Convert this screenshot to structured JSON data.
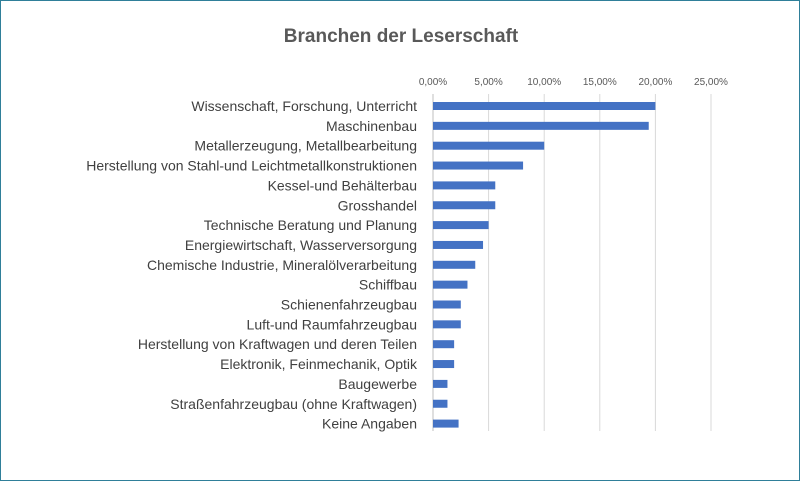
{
  "chart_data": {
    "type": "bar",
    "orientation": "horizontal",
    "title": "Branchen der Leserschaft",
    "xlabel": "",
    "ylabel": "",
    "xlim": [
      0,
      25
    ],
    "ticks": [
      0,
      5,
      10,
      15,
      20,
      25
    ],
    "tick_labels": [
      "0,00%",
      "5,00%",
      "10,00%",
      "15,00%",
      "20,00%",
      "25,00%"
    ],
    "grid": true,
    "axis_position": "top",
    "bar_color": "#4472c4",
    "categories": [
      "Wissenschaft, Forschung, Unterricht",
      "Maschinenbau",
      "Metallerzeugung, Metallbearbeitung",
      "Herstellung von Stahl-und Leichtmetallkonstruktionen",
      "Kessel-und Behälterbau",
      "Grosshandel",
      "Technische Beratung und Planung",
      "Energiewirtschaft, Wasserversorgung",
      "Chemische Industrie, Mineralölverarbeitung",
      "Schiffbau",
      "Schienenfahrzeugbau",
      "Luft-und Raumfahrzeugbau",
      "Herstellung von Kraftwagen und deren Teilen",
      "Elektronik, Feinmechanik, Optik",
      "Baugewerbe",
      "Straßenfahrzeugbau (ohne Kraftwagen)",
      "Keine Angaben"
    ],
    "values": [
      20.0,
      19.4,
      10.0,
      8.1,
      5.6,
      5.6,
      5.0,
      4.5,
      3.8,
      3.1,
      2.5,
      2.5,
      1.9,
      1.9,
      1.3,
      1.3,
      2.3
    ]
  }
}
